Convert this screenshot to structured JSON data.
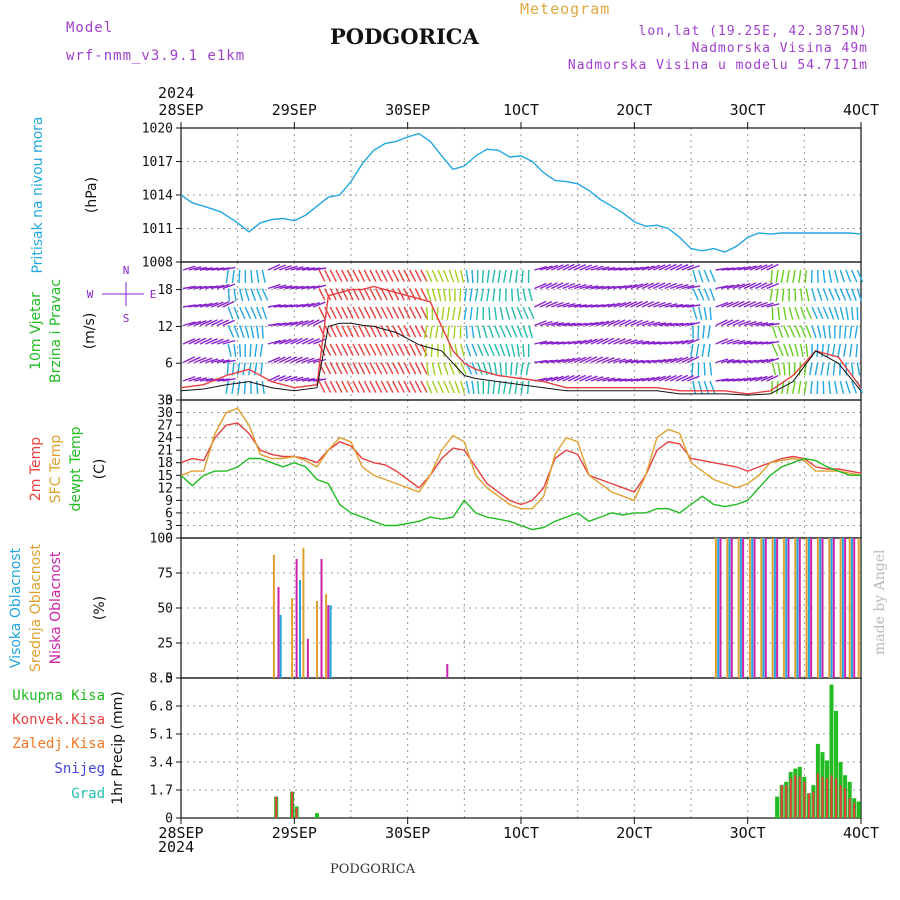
{
  "header": {
    "model_label": "Model",
    "model_name": "wrf-nmm_v3.9.1  e1km",
    "title": "PODGORICA",
    "meteogram_label": "Meteogram",
    "lonlat": "lon,lat (19.25E, 42.3875N)",
    "elevation": "Nadmorska Visina 49m",
    "model_elevation": "Nadmorska Visina u modelu 54.7171m",
    "footer_station": "PODGORICA",
    "watermark": "made by Angel",
    "year": "2024"
  },
  "colors": {
    "pressure": "#22a7e0",
    "temp2m": "#e84040",
    "tsfc": "#e0a030",
    "dewpoint": "#22bb22",
    "cloud_high": "#22a7e0",
    "cloud_mid": "#e0a030",
    "cloud_low": "#cc22aa",
    "precip_total": "#22bb22",
    "precip_conv": "#e84040",
    "precip_frz": "#ee7722",
    "snow": "#4444dd",
    "hail": "#22c0b0",
    "wind_purple": "#8822cc"
  },
  "x_axis": {
    "tick_labels": [
      "28SEP",
      "29SEP",
      "30SEP",
      "1OCT",
      "2OCT",
      "3OCT",
      "4OCT"
    ],
    "day_index": [
      0,
      1,
      2,
      3,
      4,
      5,
      6
    ]
  },
  "chart_data": [
    {
      "id": "pressure",
      "type": "line",
      "ylabel": "Pritisak na nivou mora",
      "unit": "(hPa)",
      "ylim": [
        1008,
        1020
      ],
      "yticks": [
        1008,
        1011,
        1014,
        1017,
        1020
      ],
      "grid": true,
      "series": [
        {
          "color": "#22a7e0",
          "x": [
            0,
            0.1,
            0.2,
            0.35,
            0.5,
            0.6,
            0.7,
            0.8,
            0.9,
            1,
            1.1,
            1.2,
            1.3,
            1.4,
            1.5,
            1.6,
            1.7,
            1.8,
            1.9,
            2,
            2.1,
            2.2,
            2.3,
            2.4,
            2.5,
            2.6,
            2.7,
            2.8,
            2.9,
            3,
            3.1,
            3.2,
            3.3,
            3.4,
            3.5,
            3.6,
            3.7,
            3.8,
            3.9,
            4,
            4.1,
            4.2,
            4.3,
            4.4,
            4.5,
            4.6,
            4.7,
            4.8,
            4.9,
            5,
            5.1,
            5.2,
            5.3,
            5.4,
            5.5,
            5.6,
            5.7,
            5.8,
            5.9,
            6
          ],
          "y": [
            1014.0,
            1013.3,
            1013.0,
            1012.5,
            1011.5,
            1010.7,
            1011.5,
            1011.8,
            1011.9,
            1011.7,
            1012.2,
            1013.0,
            1013.8,
            1014.0,
            1015.2,
            1016.8,
            1018.0,
            1018.6,
            1018.8,
            1019.2,
            1019.5,
            1018.8,
            1017.5,
            1016.3,
            1016.6,
            1017.5,
            1018.1,
            1018.0,
            1017.4,
            1017.5,
            1017.0,
            1016.0,
            1015.3,
            1015.2,
            1015.0,
            1014.4,
            1013.6,
            1013.0,
            1012.4,
            1011.6,
            1011.2,
            1011.3,
            1011.0,
            1010.2,
            1009.2,
            1009.0,
            1009.2,
            1008.9,
            1009.4,
            1010.2,
            1010.6,
            1010.5,
            1010.6,
            1010.6,
            1010.6,
            1010.6,
            1010.6,
            1010.6,
            1010.6,
            1010.5
          ]
        }
      ]
    },
    {
      "id": "wind",
      "type": "line",
      "ylabel": "10m Vjetar",
      "ylabel2": "Brzina i Pravac",
      "unit": "(m/s)",
      "ylim": [
        0,
        22.5
      ],
      "yticks": [
        0,
        6,
        12,
        18
      ],
      "grid": true,
      "compass": {
        "n": "N",
        "s": "S",
        "w": "W",
        "e": "E"
      },
      "series": [
        {
          "name": "gust",
          "color": "#e84040",
          "x": [
            0,
            0.2,
            0.4,
            0.6,
            0.8,
            1,
            1.2,
            1.3,
            1.4,
            1.5,
            1.6,
            1.7,
            1.8,
            1.9,
            2,
            2.1,
            2.2,
            2.3,
            2.4,
            2.5,
            2.6,
            2.8,
            3,
            3.2,
            3.4,
            3.6,
            3.8,
            4,
            4.2,
            4.4,
            4.6,
            4.8,
            5,
            5.2,
            5.4,
            5.6,
            5.8,
            6
          ],
          "y": [
            2,
            2.5,
            4,
            5,
            3,
            2,
            2.5,
            17,
            17.5,
            18,
            18,
            18.5,
            18,
            17.5,
            17,
            16.5,
            16,
            12,
            8,
            6,
            5,
            4,
            3.5,
            3,
            2,
            2,
            2,
            2,
            2,
            1.5,
            1.5,
            1.5,
            1,
            1.5,
            4,
            8,
            7,
            2
          ]
        },
        {
          "name": "mean",
          "color": "#111111",
          "x": [
            0,
            0.2,
            0.4,
            0.6,
            0.8,
            1,
            1.2,
            1.3,
            1.4,
            1.5,
            1.6,
            1.7,
            1.8,
            1.9,
            2,
            2.1,
            2.2,
            2.3,
            2.4,
            2.5,
            2.6,
            2.8,
            3,
            3.2,
            3.4,
            3.6,
            3.8,
            4,
            4.2,
            4.4,
            4.6,
            4.8,
            5,
            5.2,
            5.4,
            5.6,
            5.8,
            6
          ],
          "y": [
            1.5,
            1.8,
            2.5,
            3,
            2,
            1.5,
            2,
            12,
            12.5,
            12.5,
            12.2,
            12,
            11.5,
            11,
            10,
            9,
            8.5,
            8,
            6,
            4,
            3.5,
            3,
            2.5,
            2,
            1.5,
            1.5,
            1.5,
            1.5,
            1.5,
            1,
            1,
            1,
            0.8,
            1,
            3,
            8,
            6,
            1.5
          ]
        }
      ],
      "barb_bands": [
        {
          "from": 0,
          "to": 0.4,
          "color": "#8822cc"
        },
        {
          "from": 0.4,
          "to": 0.75,
          "color": "#22a7e0"
        },
        {
          "from": 0.75,
          "to": 1.2,
          "color": "#8822cc"
        },
        {
          "from": 1.2,
          "to": 2.15,
          "color": "#e84040"
        },
        {
          "from": 2.15,
          "to": 2.5,
          "color": "#a0d020"
        },
        {
          "from": 2.5,
          "to": 2.6,
          "color": "#22a7e0"
        },
        {
          "from": 2.6,
          "to": 3.1,
          "color": "#22bbaa"
        },
        {
          "from": 3.1,
          "to": 4.5,
          "color": "#8822cc"
        },
        {
          "from": 4.5,
          "to": 4.7,
          "color": "#22a7e0"
        },
        {
          "from": 4.7,
          "to": 5.2,
          "color": "#8822cc"
        },
        {
          "from": 5.2,
          "to": 5.55,
          "color": "#66cc22"
        },
        {
          "from": 5.55,
          "to": 6,
          "color": "#22a7e0"
        }
      ]
    },
    {
      "id": "temperature",
      "type": "line",
      "ylabel": "2m Temp",
      "ylabel2": "SFC Temp",
      "ylabel3": "dewpt Temp",
      "unit": "(C)",
      "ylim": [
        0,
        33
      ],
      "yticks": [
        0,
        3,
        6,
        9,
        12,
        15,
        18,
        21,
        24,
        27,
        30,
        33
      ],
      "grid": true,
      "series": [
        {
          "name": "2m Temp",
          "color": "#e84040",
          "x": [
            0,
            0.1,
            0.2,
            0.3,
            0.4,
            0.5,
            0.6,
            0.7,
            0.8,
            0.9,
            1,
            1.1,
            1.2,
            1.3,
            1.4,
            1.5,
            1.6,
            1.7,
            1.8,
            1.9,
            2,
            2.1,
            2.2,
            2.3,
            2.4,
            2.5,
            2.6,
            2.7,
            2.8,
            2.9,
            3,
            3.1,
            3.2,
            3.3,
            3.4,
            3.5,
            3.6,
            3.7,
            3.8,
            3.9,
            4,
            4.1,
            4.2,
            4.3,
            4.4,
            4.5,
            4.6,
            4.7,
            4.8,
            4.9,
            5,
            5.1,
            5.2,
            5.3,
            5.4,
            5.5,
            5.6,
            5.7,
            5.8,
            5.9,
            6
          ],
          "y": [
            18,
            19,
            18.5,
            24,
            27,
            27.5,
            25,
            21,
            20,
            19.5,
            19.5,
            19,
            18,
            21,
            23,
            22,
            19,
            18,
            17.5,
            16,
            14,
            12,
            15,
            19,
            21.5,
            21,
            17,
            13,
            11,
            9,
            8,
            9,
            12,
            19,
            21,
            20,
            15,
            14,
            13,
            12,
            11,
            15,
            21,
            23,
            22.5,
            19,
            18.5,
            18,
            17.5,
            17,
            16,
            17,
            18,
            19,
            19.5,
            19,
            17,
            16.5,
            16.5,
            16,
            15.5
          ]
        },
        {
          "name": "SFC Temp",
          "color": "#e0a030",
          "x": [
            0,
            0.1,
            0.2,
            0.3,
            0.4,
            0.5,
            0.6,
            0.7,
            0.8,
            0.9,
            1,
            1.1,
            1.2,
            1.3,
            1.4,
            1.5,
            1.6,
            1.7,
            1.8,
            1.9,
            2,
            2.1,
            2.2,
            2.3,
            2.4,
            2.5,
            2.6,
            2.7,
            2.8,
            2.9,
            3,
            3.1,
            3.2,
            3.3,
            3.4,
            3.5,
            3.6,
            3.7,
            3.8,
            3.9,
            4,
            4.1,
            4.2,
            4.3,
            4.4,
            4.5,
            4.6,
            4.7,
            4.8,
            4.9,
            5,
            5.1,
            5.2,
            5.3,
            5.4,
            5.5,
            5.6,
            5.7,
            5.8,
            5.9,
            6
          ],
          "y": [
            15,
            16,
            16,
            25,
            30,
            31,
            27,
            20,
            19,
            19,
            19.5,
            18.5,
            17,
            21,
            24,
            23,
            17,
            15,
            14,
            13,
            12,
            11,
            15,
            21,
            24.5,
            23,
            15,
            12,
            10,
            8,
            7,
            7,
            10,
            20,
            24,
            23,
            15,
            13,
            11,
            10,
            9,
            15,
            24,
            26,
            25,
            18,
            16,
            14,
            13,
            12,
            13,
            15,
            18,
            18.5,
            19,
            18.5,
            16,
            16,
            16,
            15.5,
            15
          ]
        },
        {
          "name": "dewpt Temp",
          "color": "#22bb22",
          "x": [
            0,
            0.1,
            0.2,
            0.3,
            0.4,
            0.5,
            0.6,
            0.7,
            0.8,
            0.9,
            1,
            1.1,
            1.2,
            1.3,
            1.4,
            1.5,
            1.6,
            1.7,
            1.8,
            1.9,
            2,
            2.1,
            2.2,
            2.3,
            2.4,
            2.5,
            2.6,
            2.7,
            2.8,
            2.9,
            3,
            3.1,
            3.2,
            3.3,
            3.4,
            3.5,
            3.6,
            3.7,
            3.8,
            3.9,
            4,
            4.1,
            4.2,
            4.3,
            4.4,
            4.5,
            4.6,
            4.7,
            4.8,
            4.9,
            5,
            5.1,
            5.2,
            5.3,
            5.4,
            5.5,
            5.6,
            5.7,
            5.8,
            5.9,
            6
          ],
          "y": [
            15,
            12.5,
            15,
            16,
            16,
            17,
            19,
            19,
            18,
            17,
            18,
            17,
            14,
            13,
            8,
            6,
            5,
            4,
            3,
            3,
            3.5,
            4,
            5,
            4.5,
            5,
            9,
            6,
            5,
            4.5,
            4,
            3,
            2,
            2.5,
            4,
            5,
            6,
            4,
            5,
            6,
            5.5,
            6,
            6,
            7,
            7,
            6,
            8,
            10,
            8,
            7.5,
            8,
            9,
            12,
            15,
            17,
            18,
            19,
            18.5,
            17,
            16,
            15,
            15
          ]
        }
      ]
    },
    {
      "id": "clouds",
      "type": "bar",
      "ylabel": "Visoka Oblacnost",
      "ylabel2": "Srednja Oblacnost",
      "ylabel3": "Niska Oblacnost",
      "unit": "(%)",
      "ylim": [
        0,
        100
      ],
      "yticks": [
        0,
        25,
        50,
        75,
        100
      ],
      "grid": true,
      "mid_bars": {
        "x": [
          0.82,
          0.98,
          1.08,
          1.2,
          1.28,
          4.72,
          4.82,
          4.92,
          5.02,
          5.12,
          5.22,
          5.32,
          5.42,
          5.52,
          5.62,
          5.72,
          5.82,
          5.9,
          5.98
        ],
        "y": [
          88,
          57,
          93,
          55,
          60,
          100,
          100,
          100,
          100,
          100,
          100,
          100,
          100,
          100,
          100,
          100,
          100,
          100,
          100
        ]
      },
      "low_bars": {
        "x": [
          0.86,
          1.02,
          1.12,
          1.24,
          1.3,
          2.35,
          4.76,
          4.86,
          4.96,
          5.06,
          5.16,
          5.26,
          5.36,
          5.46,
          5.56,
          5.66,
          5.76,
          5.86,
          5.94
        ],
        "y": [
          65,
          85,
          28,
          85,
          52,
          10,
          100,
          100,
          100,
          100,
          100,
          100,
          100,
          100,
          100,
          100,
          100,
          100,
          100
        ]
      },
      "high_bars": {
        "x": [
          0.88,
          1.05,
          1.32,
          4.74,
          4.84,
          4.94,
          5.04,
          5.14,
          5.24,
          5.34,
          5.44,
          5.54,
          5.64,
          5.74,
          5.84,
          5.92
        ],
        "y": [
          45,
          70,
          52,
          100,
          100,
          100,
          100,
          100,
          100,
          100,
          100,
          100,
          100,
          100,
          100,
          100
        ]
      }
    },
    {
      "id": "precip",
      "type": "bar",
      "ylabel": "1hr Precip",
      "unit": "(mm)",
      "ylim": [
        0,
        8.5
      ],
      "yticks": [
        0,
        1.7,
        3.4,
        5.1,
        6.8,
        8.5
      ],
      "grid": true,
      "legend": {
        "total": "Ukupna Kisa",
        "conv": "Konvek.Kisa",
        "frz": "Zaledj.Kisa",
        "snow": "Snijeg",
        "hail": "Grad"
      },
      "total_bars": {
        "x": [
          0.84,
          0.98,
          1.02,
          1.2,
          5.26,
          5.3,
          5.34,
          5.38,
          5.42,
          5.46,
          5.5,
          5.54,
          5.58,
          5.62,
          5.66,
          5.7,
          5.74,
          5.78,
          5.82,
          5.86,
          5.9,
          5.94,
          5.98
        ],
        "y": [
          1.3,
          1.6,
          0.7,
          0.3,
          1.3,
          2.0,
          2.2,
          2.8,
          3.0,
          3.1,
          2.5,
          1.5,
          2.0,
          4.5,
          4.0,
          3.5,
          8.1,
          6.5,
          3.4,
          2.6,
          2.2,
          1.2,
          1.0
        ]
      },
      "conv_bars": {
        "x": [
          0.84,
          0.98,
          1.02,
          5.3,
          5.34,
          5.38,
          5.42,
          5.46,
          5.5,
          5.54,
          5.58,
          5.62,
          5.66,
          5.7,
          5.74,
          5.78,
          5.82,
          5.86,
          5.9,
          5.94
        ],
        "y": [
          1.3,
          1.6,
          0.6,
          2.0,
          2.0,
          2.4,
          2.6,
          2.5,
          2.2,
          1.5,
          1.6,
          2.7,
          2.5,
          2.4,
          2.6,
          2.4,
          2.0,
          1.8,
          1.2,
          0.9
        ]
      }
    }
  ]
}
